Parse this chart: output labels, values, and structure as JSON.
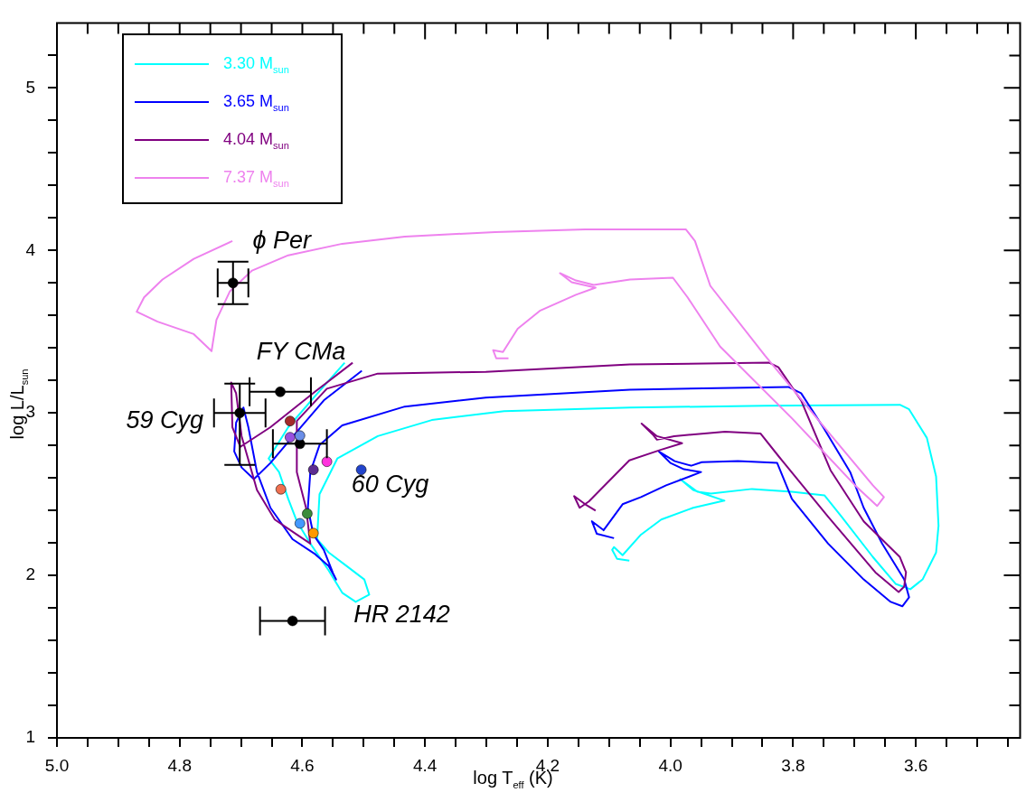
{
  "chart_data": {
    "type": "line",
    "xlabel": "log T$_{eff}$ (K)",
    "ylabel": "log L/L$_{sun}$",
    "legend": "top left",
    "xlim": [
      5.0,
      3.43
    ],
    "ylim": [
      1,
      5.4
    ],
    "xticks": [
      {
        "value": 5.0,
        "label": "5.0"
      },
      {
        "value": 4.95,
        "label": null
      },
      {
        "value": 4.9,
        "label": null
      },
      {
        "value": 4.85,
        "label": null
      },
      {
        "value": 4.8,
        "label": "4.8"
      },
      {
        "value": 4.75,
        "label": null
      },
      {
        "value": 4.7,
        "label": null
      },
      {
        "value": 4.65,
        "label": null
      },
      {
        "value": 4.6,
        "label": "4.6"
      },
      {
        "value": 4.55,
        "label": null
      },
      {
        "value": 4.5,
        "label": null
      },
      {
        "value": 4.45,
        "label": null
      },
      {
        "value": 4.4,
        "label": "4.4"
      },
      {
        "value": 4.35,
        "label": null
      },
      {
        "value": 4.3,
        "label": null
      },
      {
        "value": 4.25,
        "label": null
      },
      {
        "value": 4.2,
        "label": "4.2"
      },
      {
        "value": 4.15,
        "label": null
      },
      {
        "value": 4.1,
        "label": null
      },
      {
        "value": 4.05,
        "label": null
      },
      {
        "value": 4.0,
        "label": "4.0"
      },
      {
        "value": 3.95,
        "label": null
      },
      {
        "value": 3.9,
        "label": null
      },
      {
        "value": 3.85,
        "label": null
      },
      {
        "value": 3.8,
        "label": "3.8"
      },
      {
        "value": 3.75,
        "label": null
      },
      {
        "value": 3.7,
        "label": null
      },
      {
        "value": 3.65,
        "label": null
      },
      {
        "value": 3.6,
        "label": "3.6"
      },
      {
        "value": 3.55,
        "label": null
      },
      {
        "value": 3.5,
        "label": null
      },
      {
        "value": 3.45,
        "label": null
      }
    ],
    "yticks": [
      1,
      {
        "value": 1.2,
        "label": null
      },
      {
        "value": 1.4,
        "label": null
      },
      {
        "value": 1.6,
        "label": null
      },
      {
        "value": 1.8,
        "label": null
      },
      2,
      {
        "value": 2.2,
        "label": null
      },
      {
        "value": 2.4,
        "label": null
      },
      {
        "value": 2.6,
        "label": null
      },
      {
        "value": 2.8,
        "label": null
      },
      3,
      {
        "value": 3.2,
        "label": null
      },
      {
        "value": 3.4,
        "label": null
      },
      {
        "value": 3.6,
        "label": null
      },
      {
        "value": 3.8,
        "label": null
      },
      4,
      {
        "value": 4.2,
        "label": null
      },
      {
        "value": 4.4,
        "label": null
      },
      {
        "value": 4.6,
        "label": null
      },
      {
        "value": 4.8,
        "label": null
      },
      5,
      {
        "value": 5.2,
        "label": null
      }
    ],
    "series": [
      {
        "name": "3.30 M$_{sun}$",
        "color": "#00ffff",
        "type": "line",
        "x": [
          4.531,
          4.579,
          4.623,
          4.655,
          4.638,
          4.623,
          4.609,
          4.587,
          4.557,
          4.535,
          4.513,
          4.491,
          4.499,
          4.528,
          4.557,
          4.576,
          4.572,
          4.543,
          4.477,
          4.389,
          4.271,
          4.066,
          3.846,
          3.626,
          3.611,
          3.582,
          3.567,
          3.563,
          3.567,
          3.589,
          3.609,
          3.633,
          3.67,
          3.721,
          3.749,
          3.802,
          3.867,
          3.934,
          3.956,
          3.984,
          3.963,
          3.912,
          3.963,
          4.015,
          4.048,
          4.078,
          4.092,
          4.095,
          4.087,
          4.067
        ],
        "values": [
          3.309,
          3.105,
          2.912,
          2.719,
          2.636,
          2.471,
          2.333,
          2.196,
          2.03,
          1.893,
          1.837,
          1.882,
          1.975,
          2.058,
          2.141,
          2.223,
          2.499,
          2.719,
          2.857,
          2.956,
          3.011,
          3.033,
          3.044,
          3.05,
          3.022,
          2.846,
          2.609,
          2.306,
          2.141,
          1.975,
          1.915,
          1.948,
          2.113,
          2.361,
          2.493,
          2.515,
          2.532,
          2.504,
          2.515,
          2.592,
          2.526,
          2.46,
          2.416,
          2.344,
          2.251,
          2.124,
          2.174,
          2.157,
          2.102,
          2.091
        ]
      },
      {
        "name": "3.65 M$_{sun}$",
        "color": "#0000ff",
        "type": "line",
        "x": [
          4.503,
          4.565,
          4.609,
          4.652,
          4.679,
          4.699,
          4.711,
          4.708,
          4.696,
          4.688,
          4.674,
          4.652,
          4.616,
          4.579,
          4.557,
          4.545,
          4.55,
          4.565,
          4.582,
          4.591,
          4.587,
          4.572,
          4.535,
          4.433,
          4.301,
          4.066,
          3.808,
          3.787,
          3.751,
          3.707,
          3.685,
          3.655,
          3.619,
          3.611,
          3.622,
          3.641,
          3.685,
          3.743,
          3.802,
          3.826,
          3.89,
          3.949,
          3.966,
          3.993,
          4.019,
          4.0,
          3.978,
          3.95,
          4.007,
          4.048,
          4.078,
          4.109,
          4.128,
          4.12,
          4.092
        ],
        "values": [
          3.259,
          3.077,
          2.884,
          2.692,
          2.592,
          2.664,
          2.763,
          2.94,
          3.033,
          2.912,
          2.636,
          2.416,
          2.223,
          2.13,
          2.058,
          1.975,
          2.014,
          2.157,
          2.251,
          2.416,
          2.636,
          2.802,
          2.923,
          3.039,
          3.094,
          3.143,
          3.16,
          3.121,
          2.912,
          2.636,
          2.416,
          2.196,
          1.975,
          1.865,
          1.81,
          1.837,
          1.975,
          2.196,
          2.471,
          2.692,
          2.703,
          2.697,
          2.675,
          2.703,
          2.763,
          2.692,
          2.653,
          2.636,
          2.554,
          2.482,
          2.438,
          2.278,
          2.333,
          2.256,
          2.229
        ]
      },
      {
        "name": "4.04 M$_{sun}$",
        "color": "#800080",
        "type": "line",
        "x": [
          4.518,
          4.579,
          4.652,
          4.701,
          4.714,
          4.716,
          4.708,
          4.699,
          4.674,
          4.645,
          4.609,
          4.587,
          4.594,
          4.609,
          4.609,
          4.56,
          4.477,
          4.301,
          4.066,
          3.839,
          3.824,
          3.787,
          3.739,
          3.685,
          3.626,
          3.616,
          3.619,
          3.628,
          3.666,
          3.743,
          3.823,
          3.853,
          3.911,
          3.994,
          4.022,
          4.029,
          4.047,
          4.022,
          3.981,
          4.015,
          4.067,
          4.133,
          4.148,
          4.157,
          4.139,
          4.122
        ],
        "values": [
          3.309,
          3.132,
          2.912,
          2.791,
          2.912,
          3.187,
          3.121,
          2.857,
          2.526,
          2.344,
          2.251,
          2.196,
          2.416,
          2.636,
          2.95,
          3.149,
          3.242,
          3.253,
          3.298,
          3.309,
          3.281,
          3.077,
          2.647,
          2.333,
          2.113,
          2.019,
          1.931,
          1.898,
          2.019,
          2.361,
          2.73,
          2.873,
          2.884,
          2.857,
          2.835,
          2.868,
          2.934,
          2.857,
          2.813,
          2.774,
          2.708,
          2.455,
          2.416,
          2.488,
          2.438,
          2.399
        ]
      },
      {
        "name": "7.37 M$_{sun}$",
        "color": "#ee82ee",
        "type": "line",
        "x": [
          4.714,
          4.777,
          4.828,
          4.858,
          4.87,
          4.836,
          4.777,
          4.748,
          4.74,
          4.718,
          4.682,
          4.623,
          4.535,
          4.433,
          4.286,
          4.139,
          3.975,
          3.96,
          3.935,
          3.846,
          3.743,
          3.67,
          3.652,
          3.663,
          3.699,
          3.802,
          3.919,
          3.972,
          3.996,
          4.066,
          4.125,
          4.154,
          4.18,
          4.161,
          4.122,
          4.154,
          4.213,
          4.249,
          4.273,
          4.289,
          4.284,
          4.264
        ],
        "values": [
          4.058,
          3.948,
          3.821,
          3.711,
          3.623,
          3.562,
          3.485,
          3.38,
          3.573,
          3.749,
          3.876,
          3.97,
          4.041,
          4.085,
          4.113,
          4.13,
          4.13,
          4.058,
          3.782,
          3.353,
          2.884,
          2.554,
          2.482,
          2.427,
          2.554,
          2.967,
          3.408,
          3.711,
          3.832,
          3.821,
          3.788,
          3.815,
          3.86,
          3.804,
          3.771,
          3.727,
          3.628,
          3.518,
          3.375,
          3.386,
          3.336,
          3.336
        ]
      },
      {
        "type": "scatter",
        "marker": "circle",
        "x": [
          4.713,
          4.636,
          4.702,
          4.604,
          4.616,
          4.62,
          4.62,
          4.604,
          4.582,
          4.56,
          4.504,
          4.635,
          4.592,
          4.604,
          4.582
        ],
        "values": [
          3.8,
          3.13,
          3.0,
          2.81,
          1.72,
          2.95,
          2.85,
          2.86,
          2.65,
          2.7,
          2.65,
          2.53,
          2.38,
          2.32,
          2.26
        ],
        "colors": [
          "#000000",
          "#000000",
          "#000000",
          "#000000",
          "#000000",
          "#a52a2a",
          "#9a50e0",
          "#6a8ee8",
          "#5c2d91",
          "#ff33dd",
          "#2244cc",
          "#f07050",
          "#3c8c3c",
          "#4499ff",
          "#ff9900"
        ],
        "errors": [
          0.13,
          null,
          [
            2.68,
            3.18
          ],
          null,
          null,
          null,
          null,
          null,
          null,
          null,
          null,
          null,
          null,
          null,
          null
        ],
        "xerrors": [
          0.025,
          0.05,
          0.042,
          0.044,
          0.053,
          null,
          null,
          null,
          null,
          null,
          null,
          null,
          null,
          null,
          null
        ]
      }
    ],
    "annotations": [
      {
        "text": "ϕ Per",
        "x": 4.713,
        "y": 3.8
      },
      {
        "text": "FY CMa",
        "x": 4.636,
        "y": 3.13
      },
      {
        "text": "59 Cyg",
        "x": 4.702,
        "y": 3.0
      },
      {
        "text": "60 Cyg",
        "x": 4.504,
        "y": 2.65
      },
      {
        "text": "HR 2142",
        "x": 4.616,
        "y": 1.72
      }
    ]
  }
}
